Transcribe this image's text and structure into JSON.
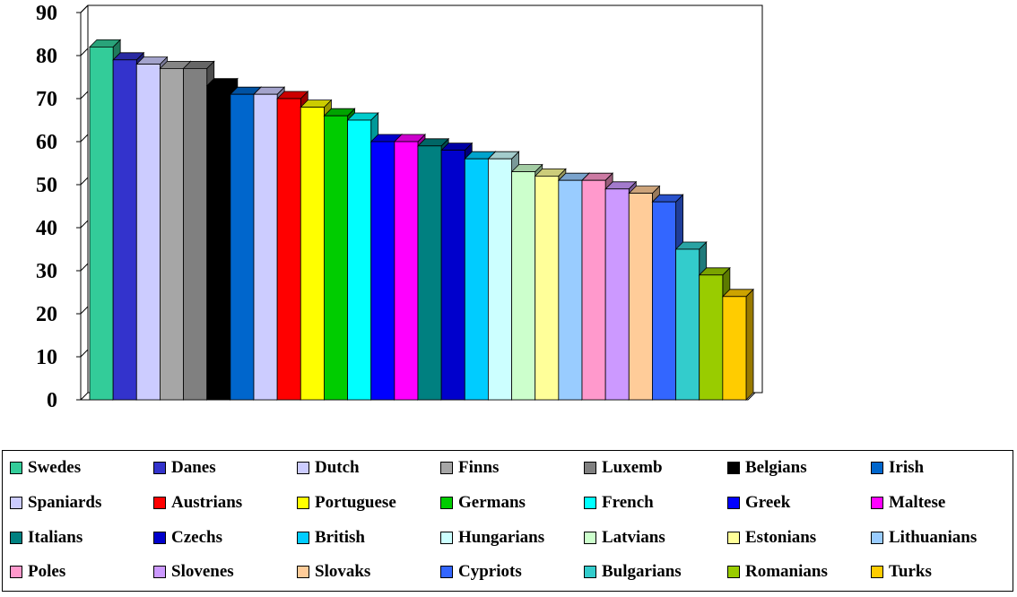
{
  "chart_data": {
    "type": "bar",
    "categories": [
      "Swedes",
      "Danes",
      "Dutch",
      "Finns",
      "Luxemb",
      "Belgians",
      "Irish",
      "Spaniards",
      "Austrians",
      "Portuguese",
      "Germans",
      "French",
      "Greek",
      "Maltese",
      "Italians",
      "Czechs",
      "British",
      "Hungarians",
      "Latvians",
      "Estonians",
      "Lithuanians",
      "Poles",
      "Slovenes",
      "Slovaks",
      "Cypriots",
      "Bulgarians",
      "Romanians",
      "Turks"
    ],
    "values": [
      82,
      79,
      78,
      77,
      77,
      73,
      71,
      71,
      70,
      68,
      66,
      65,
      60,
      60,
      59,
      58,
      56,
      56,
      53,
      52,
      51,
      51,
      49,
      48,
      46,
      35,
      29,
      24
    ],
    "colors": [
      "#33cc99",
      "#3333cc",
      "#ccccff",
      "#a6a6a6",
      "#808080",
      "#000000",
      "#0066cc",
      "#ccccff",
      "#ff0000",
      "#ffff00",
      "#00cc00",
      "#00ffff",
      "#0000ff",
      "#ff00ff",
      "#008080",
      "#0000cc",
      "#00ccff",
      "#ccffff",
      "#ccffcc",
      "#ffff99",
      "#99ccff",
      "#ff99cc",
      "#cc99ff",
      "#ffcc99",
      "#3366ff",
      "#33cccc",
      "#99cc00",
      "#ffcc00"
    ],
    "ylim": [
      0,
      90
    ],
    "yticks": [
      "0",
      "10",
      "20",
      "30",
      "40",
      "50",
      "60",
      "70",
      "80",
      "90"
    ],
    "grid": true,
    "legend_position": "bottom",
    "title": "",
    "xlabel": "",
    "ylabel": ""
  }
}
